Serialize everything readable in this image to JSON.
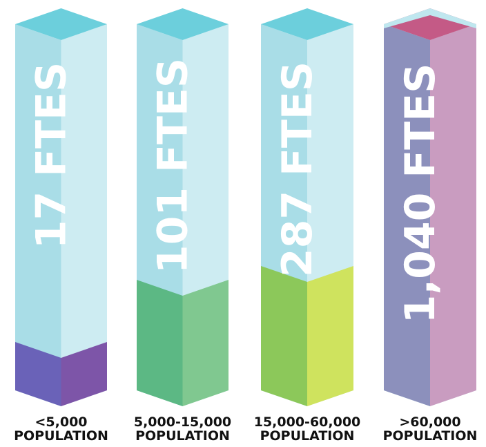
{
  "columns": [
    {
      "label": "17 FTES",
      "population": [
        "<5,000",
        "POPULATION"
      ]
    },
    {
      "label": "101 FTES",
      "population": [
        "5,000-15,000",
        "POPULATION"
      ]
    },
    {
      "label": "287 FTES",
      "population": [
        "15,000-60,000",
        "POPULATION"
      ]
    },
    {
      "label": "1,040 FTES",
      "population": [
        ">60,000",
        "POPULATION"
      ]
    }
  ]
}
